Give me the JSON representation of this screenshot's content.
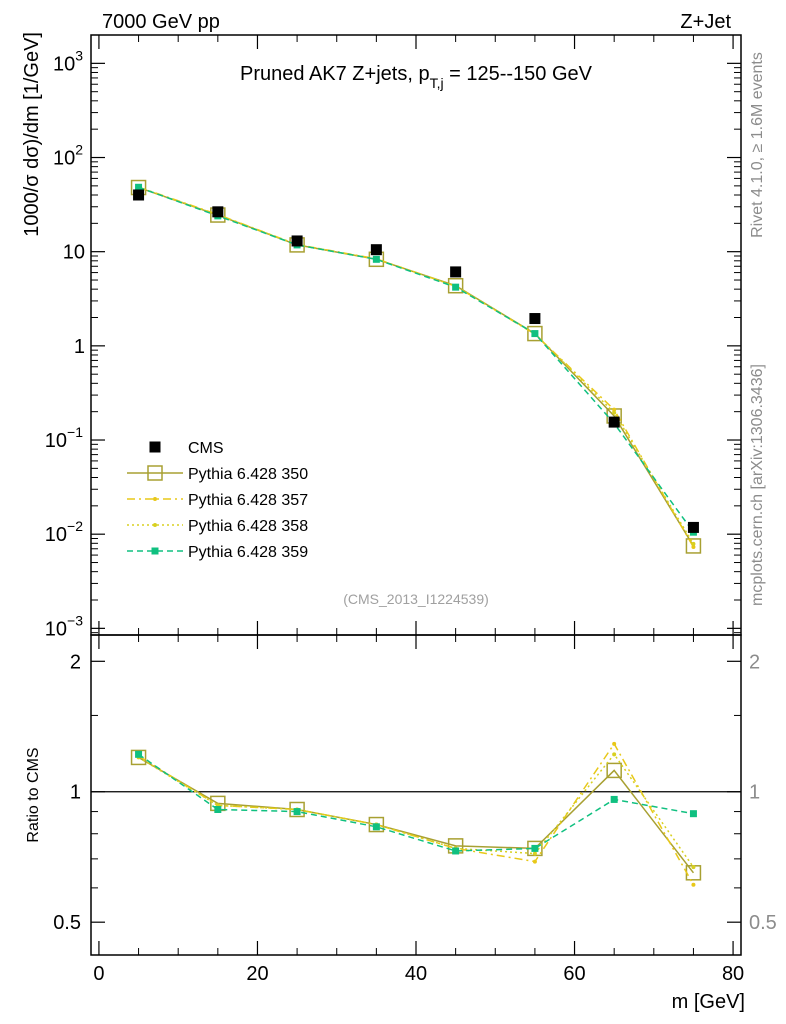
{
  "header": {
    "left": "7000 GeV pp",
    "right": "Z+Jet"
  },
  "side_labels": {
    "rivet": "Rivet 4.1.0, ≥ 1.6M events",
    "source": "mcplots.cern.ch [arXiv:1306.3436]"
  },
  "chart_data": [
    {
      "type": "line",
      "panel": "main",
      "title_main": "Pruned AK7 Z+jets, p",
      "title_sub": "T,j",
      "title_rest": " = 125--150 GeV",
      "ylabel": "1000/σ  dσ)/dm [1/GeV]",
      "xlabel": "m [GeV]",
      "yscale": "log",
      "ylim": [
        0.00085,
        2000
      ],
      "xlim": [
        -1,
        81
      ],
      "y_ticks": [
        {
          "value": 1000,
          "base": "10",
          "exp": "3"
        },
        {
          "value": 100,
          "base": "10",
          "exp": "2"
        },
        {
          "value": 10,
          "base": "10",
          "exp": ""
        },
        {
          "value": 1,
          "base": "1",
          "exp": ""
        },
        {
          "value": 0.1,
          "base": "10",
          "exp": "−1"
        },
        {
          "value": 0.01,
          "base": "10",
          "exp": "−2"
        },
        {
          "value": 0.001,
          "base": "10",
          "exp": "−3"
        }
      ],
      "watermark": "(CMS_2013_I1224539)",
      "x": [
        5,
        15,
        25,
        35,
        45,
        55,
        65,
        75
      ],
      "series": [
        {
          "name": "CMS",
          "color": "#000000",
          "style": "data",
          "values": [
            40,
            26.5,
            13,
            10.5,
            6.1,
            1.95,
            0.155,
            0.0118
          ]
        },
        {
          "name": "Pythia 6.428 350",
          "color": "#a8a032",
          "style": "solid",
          "marker": "open-square",
          "values": [
            48,
            24.5,
            11.8,
            8.3,
            4.35,
            1.35,
            0.18,
            0.0075
          ]
        },
        {
          "name": "Pythia 6.428 357",
          "color": "#e8c818",
          "style": "dashdot",
          "marker": "small-dot",
          "values": [
            48.5,
            24.8,
            11.9,
            8.4,
            4.3,
            1.33,
            0.21,
            0.0073
          ]
        },
        {
          "name": "Pythia 6.428 358",
          "color": "#d8d020",
          "style": "dotted",
          "marker": "small-dot",
          "values": [
            48.2,
            24.6,
            11.9,
            8.35,
            4.3,
            1.35,
            0.195,
            0.0079
          ]
        },
        {
          "name": "Pythia 6.428 359",
          "color": "#10c080",
          "style": "dashed",
          "marker": "filled-square",
          "values": [
            48.3,
            24.0,
            11.8,
            8.3,
            4.2,
            1.35,
            0.15,
            0.0105
          ]
        }
      ]
    },
    {
      "type": "line",
      "panel": "ratio",
      "ylabel": "Ratio to CMS",
      "yscale": "log",
      "ylim": [
        0.42,
        2.3
      ],
      "reference_line": 1,
      "y_ticks": [
        {
          "value": 2,
          "label": "2"
        },
        {
          "value": 1,
          "label": "1"
        },
        {
          "value": 0.5,
          "label": "0.5"
        }
      ],
      "x_ticks": [
        {
          "value": 0,
          "label": "0"
        },
        {
          "value": 20,
          "label": "20"
        },
        {
          "value": 40,
          "label": "40"
        },
        {
          "value": 60,
          "label": "60"
        },
        {
          "value": 80,
          "label": "80"
        }
      ],
      "x": [
        5,
        15,
        25,
        35,
        45,
        55,
        65,
        75
      ],
      "series": [
        {
          "name": "Pythia 6.428 350",
          "color": "#a8a032",
          "style": "solid",
          "marker": "open-square",
          "values": [
            1.2,
            0.94,
            0.91,
            0.84,
            0.75,
            0.74,
            1.12,
            0.65
          ]
        },
        {
          "name": "Pythia 6.428 357",
          "color": "#e8c818",
          "style": "dashdot",
          "marker": "small-dot",
          "values": [
            1.21,
            0.93,
            0.91,
            0.84,
            0.74,
            0.69,
            1.29,
            0.61
          ]
        },
        {
          "name": "Pythia 6.428 358",
          "color": "#d8d020",
          "style": "dotted",
          "marker": "small-dot",
          "values": [
            1.2,
            0.93,
            0.91,
            0.84,
            0.74,
            0.72,
            1.22,
            0.67
          ]
        },
        {
          "name": "Pythia 6.428 359",
          "color": "#10c080",
          "style": "dashed",
          "marker": "filled-square",
          "values": [
            1.22,
            0.91,
            0.9,
            0.83,
            0.73,
            0.74,
            0.96,
            0.89
          ]
        }
      ]
    }
  ]
}
